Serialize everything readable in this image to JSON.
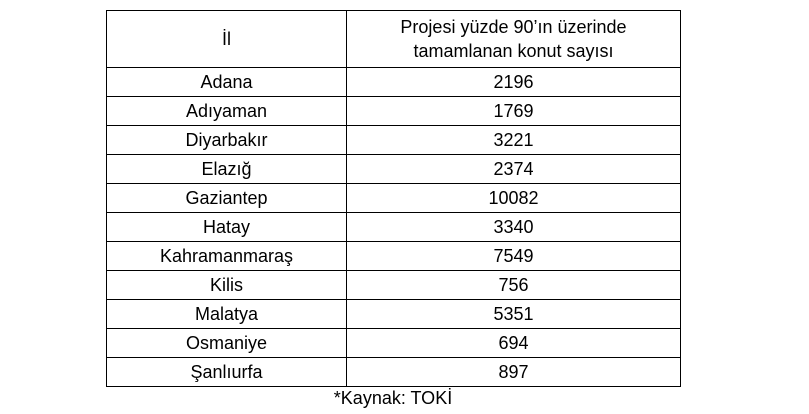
{
  "table": {
    "header": [
      "İl",
      [
        "Projesi yüzde 90’ın üzerinde",
        "tamamlanan konut sayısı"
      ]
    ],
    "rows": [
      [
        "Adana",
        2196
      ],
      [
        "Adıyaman",
        1769
      ],
      [
        "Diyarbakır",
        3221
      ],
      [
        "Elazığ",
        2374
      ],
      [
        "Gaziantep",
        10082
      ],
      [
        "Hatay",
        3340
      ],
      [
        "Kahramanmaraş",
        7549
      ],
      [
        "Kilis",
        756
      ],
      [
        "Malatya",
        5351
      ],
      [
        "Osmaniye",
        694
      ],
      [
        "Şanlıurfa",
        897
      ]
    ]
  },
  "caption": "*Kaynak: TOKİ"
}
